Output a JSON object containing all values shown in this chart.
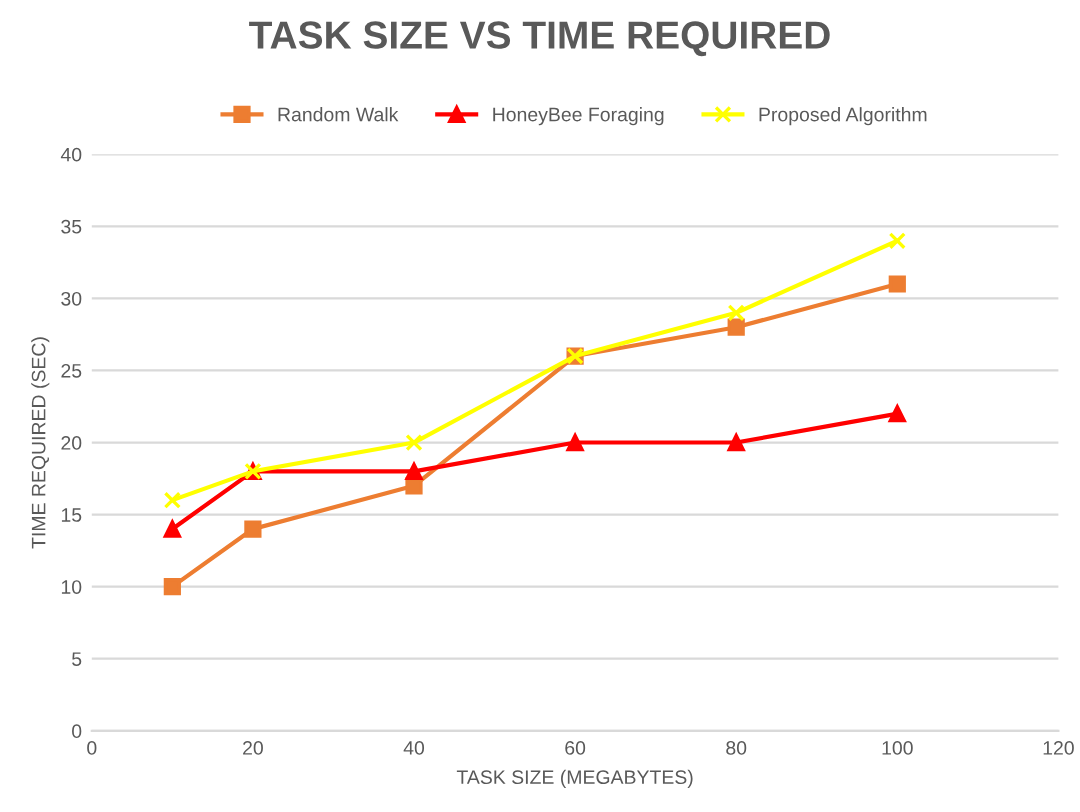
{
  "chart_data": {
    "type": "line",
    "title": "TASK SIZE VS TIME REQUIRED",
    "xlabel": "TASK SIZE (MEGABYTES)",
    "ylabel": "TIME REQUIRED (SEC)",
    "x": [
      10,
      20,
      40,
      60,
      80,
      100
    ],
    "series": [
      {
        "name": "Random Walk",
        "color": "#ed7d31",
        "marker": "square",
        "values": [
          10,
          14,
          17,
          26,
          28,
          31
        ]
      },
      {
        "name": "HoneyBee Foraging",
        "color": "#ff0000",
        "marker": "triangle",
        "values": [
          14,
          18,
          18,
          20,
          20,
          22
        ]
      },
      {
        "name": "Proposed Algorithm",
        "color": "#ffff00",
        "marker": "cross",
        "values": [
          16,
          18,
          20,
          26,
          29,
          34
        ]
      }
    ],
    "xlim": [
      0,
      120
    ],
    "xticks": [
      0,
      20,
      40,
      60,
      80,
      100,
      120
    ],
    "ylim": [
      0,
      40
    ],
    "yticks": [
      0,
      5,
      10,
      15,
      20,
      25,
      30,
      35,
      40
    ],
    "grid": "y",
    "legend": "top",
    "line_style": "solid"
  }
}
